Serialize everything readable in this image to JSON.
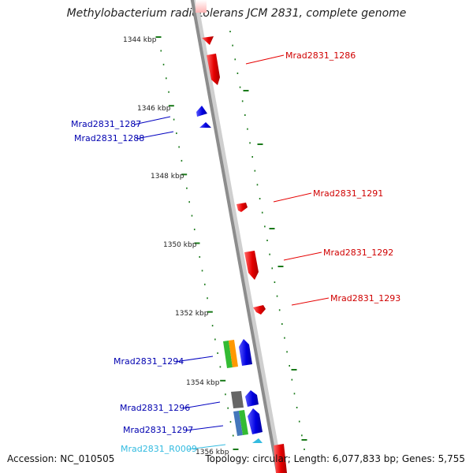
{
  "title": "Methylobacterium radiotolerans JCM 2831, complete genome",
  "accession": "Accession: NC_010505",
  "topology": "Topology: circular; Length: 6,077,833 bp; Genes: 5,755",
  "colors": {
    "backbone": "#8c8c8c",
    "ticks": "#1a7a1a",
    "forward_gene": "#e60000",
    "reverse_gene": "#0000e0",
    "rna_label": "#33bbe0",
    "green_feature": "#33bb33",
    "orange_feature": "#ff9900",
    "gray_feature": "#666666",
    "steel_feature": "#4477bb"
  },
  "position_labels": [
    {
      "text": "1344 kbp"
    },
    {
      "text": "1346 kbp"
    },
    {
      "text": "1348 kbp"
    },
    {
      "text": "1350 kbp"
    },
    {
      "text": "1352 kbp"
    },
    {
      "text": "1354 kbp"
    },
    {
      "text": "1356 kbp"
    }
  ],
  "gene_labels": [
    {
      "text": "Mrad2831_1286",
      "strand": "forward"
    },
    {
      "text": "Mrad2831_1287",
      "strand": "reverse"
    },
    {
      "text": "Mrad2831_1288",
      "strand": "reverse"
    },
    {
      "text": "Mrad2831_1291",
      "strand": "forward"
    },
    {
      "text": "Mrad2831_1292",
      "strand": "forward"
    },
    {
      "text": "Mrad2831_1293",
      "strand": "forward"
    },
    {
      "text": "Mrad2831_1294",
      "strand": "reverse"
    },
    {
      "text": "Mrad2831_1296",
      "strand": "reverse"
    },
    {
      "text": "Mrad2831_1297",
      "strand": "reverse"
    },
    {
      "text": "Mrad2831_R0009",
      "strand": "rna"
    }
  ]
}
